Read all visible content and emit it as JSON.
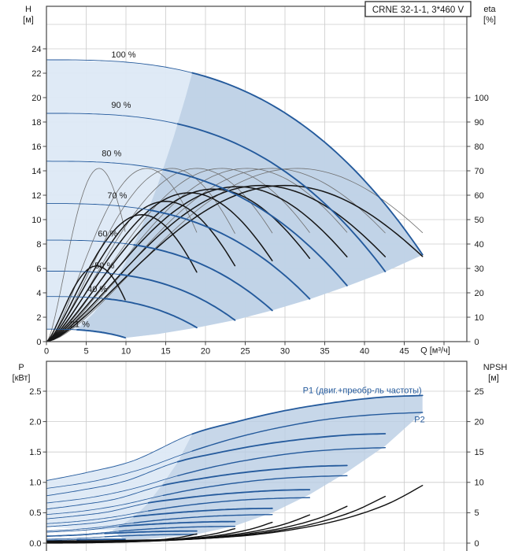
{
  "title": "CRNE 32-1-1, 3*460 V",
  "colors": {
    "curve_blue": "#245a9c",
    "label_blue": "#245a9c",
    "eta_gray": "#6f6f6f",
    "eta_black": "#161616",
    "npsh_black": "#111111",
    "shade_light": "#dde9f5",
    "shade_dark": "#b9cde3",
    "grid": "#cbcbcb",
    "border": "#454545",
    "text": "#1a1a1a"
  },
  "chart_data": [
    {
      "type": "line",
      "name": "QH-eta-chart",
      "title": "CRNE 32-1-1, 3*460 V",
      "xlabel": "Q [м³/ч]",
      "ylabel_left": [
        "H",
        "[м]"
      ],
      "ylabel_right": [
        "eta",
        "[%]"
      ],
      "xlim": [
        0,
        52.9
      ],
      "ylim_left": [
        0,
        27.5
      ],
      "eta_axis": {
        "lim": [
          0,
          100
        ],
        "eta_per_h_unit": 5
      },
      "grid": true,
      "x_tick_labels": [
        "0",
        "5",
        "10",
        "15",
        "20",
        "25",
        "30",
        "35",
        "40",
        "45"
      ],
      "x_grid_extra": [
        50
      ],
      "y_left_tick_labels": [
        "0",
        "2",
        "4",
        "6",
        "8",
        "10",
        "12",
        "14",
        "16",
        "18",
        "20",
        "22",
        "24"
      ],
      "y_grid_extra": [
        26
      ],
      "y_right_tick_labels": [
        "0",
        "10",
        "20",
        "30",
        "40",
        "50",
        "60",
        "70",
        "80",
        "90",
        "100"
      ],
      "speeds_percent": [
        100,
        90,
        80,
        70,
        60,
        50,
        40,
        21
      ],
      "qh_model": {
        "h0_100": 23.1,
        "c": 0.000266,
        "exp": 2.853,
        "q_end_100": 47.3
      },
      "duty_parabola_k": 0.0655,
      "duty_split_q_100": 18.35,
      "qh_curves": [
        {
          "speed_percent": 100,
          "h_at_q0": 23.1,
          "q_end": 47.3,
          "h_at_q_end": 7.1
        },
        {
          "speed_percent": 90,
          "h_at_q0": 18.71,
          "q_end": 42.6,
          "h_at_q_end": 5.75
        },
        {
          "speed_percent": 80,
          "h_at_q0": 14.78,
          "q_end": 37.8,
          "h_at_q_end": 4.54
        },
        {
          "speed_percent": 70,
          "h_at_q0": 11.32,
          "q_end": 33.1,
          "h_at_q_end": 3.48
        },
        {
          "speed_percent": 60,
          "h_at_q0": 8.32,
          "q_end": 28.4,
          "h_at_q_end": 2.56
        },
        {
          "speed_percent": 50,
          "h_at_q0": 5.78,
          "q_end": 23.7,
          "h_at_q_end": 1.77
        },
        {
          "speed_percent": 40,
          "h_at_q0": 3.7,
          "q_end": 18.9,
          "h_at_q_end": 1.14
        },
        {
          "speed_percent": 21,
          "h_at_q0": 1.02,
          "q_end": 9.9,
          "h_at_q_end": 0.31
        }
      ],
      "qh_points_100": [
        [
          0,
          23.1
        ],
        [
          10,
          22.9
        ],
        [
          15,
          22.5
        ],
        [
          20,
          21.73
        ],
        [
          25,
          20.51
        ],
        [
          30,
          18.74
        ],
        [
          35,
          16.34
        ],
        [
          40,
          13.19
        ],
        [
          44,
          10.11
        ],
        [
          47.3,
          7.1
        ]
      ],
      "eta_pump": {
        "peak_eta": 71,
        "peak_q_at_100": 31.5,
        "shape_exp": 1.6
      },
      "eta_total": {
        "peak_q_at_100": 30,
        "shape_exp": 1.5,
        "peak_etas": [
          64,
          64,
          63.5,
          62.5,
          61,
          57.5,
          52,
          31
        ]
      },
      "shade_light_polygon": [
        [
          0,
          23.1
        ],
        [
          5,
          23.0
        ],
        [
          10,
          22.9
        ],
        [
          15,
          22.5
        ],
        [
          20,
          21.73
        ],
        [
          25,
          20.51
        ],
        [
          30,
          18.74
        ],
        [
          35,
          16.34
        ],
        [
          40,
          13.19
        ],
        [
          44,
          10.11
        ],
        [
          47.3,
          7.1
        ],
        [
          42.6,
          5.73
        ],
        [
          37.8,
          4.54
        ],
        [
          33.1,
          3.48
        ],
        [
          28.4,
          2.56
        ],
        [
          23.7,
          1.77
        ],
        [
          18.9,
          1.14
        ],
        [
          14,
          0.62
        ],
        [
          9.9,
          0.31
        ],
        [
          8,
          0.56
        ],
        [
          6,
          0.76
        ],
        [
          4,
          0.9
        ],
        [
          2,
          0.99
        ],
        [
          0,
          1.02
        ]
      ],
      "shade_dark_polygon": [
        [
          3.74,
          0.92
        ],
        [
          6,
          2.36
        ],
        [
          8,
          4.19
        ],
        [
          10,
          6.55
        ],
        [
          12,
          9.43
        ],
        [
          14,
          12.84
        ],
        [
          16,
          16.77
        ],
        [
          17.5,
          20.06
        ],
        [
          18.35,
          22.05
        ],
        [
          20,
          21.73
        ],
        [
          25,
          20.51
        ],
        [
          30,
          18.74
        ],
        [
          35,
          16.34
        ],
        [
          40,
          13.19
        ],
        [
          44,
          10.11
        ],
        [
          47.3,
          7.1
        ],
        [
          42.6,
          5.73
        ],
        [
          37.8,
          4.54
        ],
        [
          33.1,
          3.48
        ],
        [
          28.4,
          2.56
        ],
        [
          23.7,
          1.77
        ],
        [
          18.9,
          1.14
        ],
        [
          14,
          0.62
        ],
        [
          9.9,
          0.31
        ],
        [
          8,
          0.56
        ],
        [
          6,
          0.76
        ],
        [
          4.5,
          0.87
        ]
      ],
      "curve_labels": [
        {
          "text": "100 %",
          "q": 9.7,
          "h": 23.55
        },
        {
          "text": "90 %",
          "q": 9.4,
          "h": 19.4
        },
        {
          "text": "80 %",
          "q": 8.2,
          "h": 15.45
        },
        {
          "text": "70 %",
          "q": 8.9,
          "h": 12.0
        },
        {
          "text": "60 %",
          "q": 7.7,
          "h": 8.85
        },
        {
          "text": "50 %",
          "q": 7.3,
          "h": 6.25
        },
        {
          "text": "40 %",
          "q": 6.4,
          "h": 4.3
        },
        {
          "text": "21 %",
          "q": 4.2,
          "h": 1.45
        }
      ]
    },
    {
      "type": "line",
      "name": "P-NPSH-chart",
      "xlabel": "",
      "ylabel_left": [
        "P",
        "[кВт]"
      ],
      "ylabel_right": [
        "NPSH",
        "[м]"
      ],
      "xlim": [
        0,
        52.9
      ],
      "ylim_left": [
        0,
        3.0
      ],
      "npsh_axis": {
        "lim": [
          0,
          30
        ],
        "npsh_per_kw": 10
      },
      "grid": true,
      "y_left_tick_labels": [
        "0.0",
        "0.5",
        "1.0",
        "1.5",
        "2.0",
        "2.5"
      ],
      "y_right_tick_labels": [
        "0",
        "5",
        "10",
        "15",
        "20",
        "25"
      ],
      "p1_100_points": [
        [
          0,
          1.03
        ],
        [
          5,
          1.16
        ],
        [
          11,
          1.36
        ],
        [
          18,
          1.78
        ],
        [
          24,
          2.0
        ],
        [
          30,
          2.18
        ],
        [
          36,
          2.31
        ],
        [
          42,
          2.4
        ],
        [
          47.3,
          2.43
        ]
      ],
      "p2_100_points": [
        [
          0,
          0.9
        ],
        [
          6,
          1.02
        ],
        [
          12,
          1.22
        ],
        [
          18,
          1.5
        ],
        [
          24,
          1.74
        ],
        [
          30,
          1.92
        ],
        [
          36,
          2.05
        ],
        [
          42,
          2.12
        ],
        [
          47.3,
          2.15
        ]
      ],
      "p1_at_q0": [
        1.03,
        0.78,
        0.56,
        0.4,
        0.27,
        0.18,
        0.11,
        0.05
      ],
      "p2_at_q0": [
        0.9,
        0.66,
        0.47,
        0.32,
        0.2,
        0.12,
        0.065,
        0.02
      ],
      "npsh_100_points": [
        [
          0,
          0.35
        ],
        [
          10,
          0.45
        ],
        [
          20,
          0.8
        ],
        [
          27,
          1.5
        ],
        [
          33,
          2.7
        ],
        [
          38,
          4.2
        ],
        [
          43,
          6.5
        ],
        [
          47.3,
          9.5
        ]
      ],
      "shade_light_polygon": [
        [
          0,
          1.03
        ],
        [
          5,
          1.16
        ],
        [
          11,
          1.36
        ],
        [
          15,
          1.6
        ],
        [
          18.35,
          1.8
        ],
        [
          16.5,
          1.33
        ],
        [
          14.7,
          0.99
        ],
        [
          12.8,
          0.66
        ],
        [
          11,
          0.43
        ],
        [
          9.2,
          0.28
        ],
        [
          8.3,
          0.21
        ],
        [
          4,
          0.235
        ],
        [
          0,
          0.27
        ]
      ],
      "shade_dark_polygon": [
        [
          8.3,
          0.21
        ],
        [
          9.2,
          0.28
        ],
        [
          11,
          0.43
        ],
        [
          12.8,
          0.66
        ],
        [
          14.7,
          0.99
        ],
        [
          16.5,
          1.33
        ],
        [
          18.35,
          1.8
        ],
        [
          24,
          2.0
        ],
        [
          30,
          2.18
        ],
        [
          36,
          2.31
        ],
        [
          42,
          2.4
        ],
        [
          47.3,
          2.43
        ],
        [
          47.3,
          2.15
        ],
        [
          42.6,
          1.6
        ],
        [
          37.8,
          1.17
        ],
        [
          33.1,
          0.8
        ],
        [
          28.4,
          0.5
        ],
        [
          23.6,
          0.28
        ],
        [
          18.9,
          0.145
        ],
        [
          14,
          0.08
        ],
        [
          9.9,
          0.04
        ]
      ],
      "curve_labels": [
        {
          "text": "P1 (двиг.+преобр-ль частоты)",
          "q": 47.2,
          "p": 2.52,
          "anchor": "end"
        },
        {
          "text": "P2",
          "q": 47.6,
          "p": 2.04,
          "anchor": "end"
        }
      ]
    }
  ]
}
